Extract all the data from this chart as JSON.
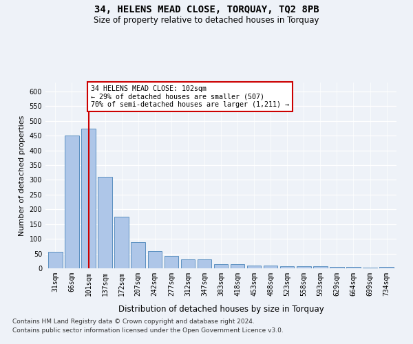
{
  "title": "34, HELENS MEAD CLOSE, TORQUAY, TQ2 8PB",
  "subtitle": "Size of property relative to detached houses in Torquay",
  "xlabel": "Distribution of detached houses by size in Torquay",
  "ylabel": "Number of detached properties",
  "categories": [
    "31sqm",
    "66sqm",
    "101sqm",
    "137sqm",
    "172sqm",
    "207sqm",
    "242sqm",
    "277sqm",
    "312sqm",
    "347sqm",
    "383sqm",
    "418sqm",
    "453sqm",
    "488sqm",
    "523sqm",
    "558sqm",
    "593sqm",
    "629sqm",
    "664sqm",
    "699sqm",
    "734sqm"
  ],
  "values": [
    55,
    450,
    473,
    311,
    175,
    88,
    58,
    42,
    30,
    30,
    15,
    15,
    10,
    10,
    7,
    7,
    8,
    4,
    4,
    2,
    4
  ],
  "bar_color": "#aec6e8",
  "bar_edge_color": "#5a8fc0",
  "highlight_bar_index": 2,
  "highlight_color": "#cc0000",
  "annotation_line1": "34 HELENS MEAD CLOSE: 102sqm",
  "annotation_line2": "← 29% of detached houses are smaller (507)",
  "annotation_line3": "70% of semi-detached houses are larger (1,211) →",
  "annotation_box_color": "#cc0000",
  "ylim": [
    0,
    630
  ],
  "yticks": [
    0,
    50,
    100,
    150,
    200,
    250,
    300,
    350,
    400,
    450,
    500,
    550,
    600
  ],
  "footer_line1": "Contains HM Land Registry data © Crown copyright and database right 2024.",
  "footer_line2": "Contains public sector information licensed under the Open Government Licence v3.0.",
  "bg_color": "#eef2f8",
  "plot_bg_color": "#eef2f8",
  "title_fontsize": 10,
  "subtitle_fontsize": 8.5,
  "axis_label_fontsize": 8,
  "tick_fontsize": 7,
  "footer_fontsize": 6.5
}
